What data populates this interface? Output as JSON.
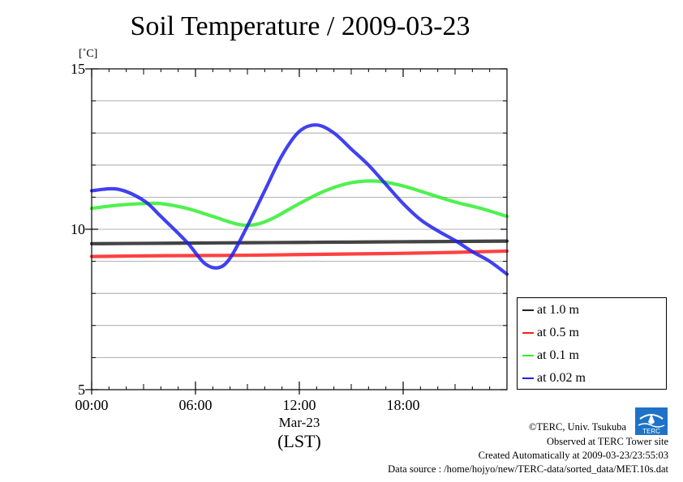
{
  "chart_data": {
    "type": "line",
    "title": "Soil Temperature / 2009-03-23",
    "ylabel": "[˚C]",
    "xlabel": "(LST)",
    "date_label": "Mar-23",
    "xlim": [
      0,
      24
    ],
    "ylim": [
      5,
      15
    ],
    "x_ticks": [
      {
        "value": 0,
        "label": "00:00"
      },
      {
        "value": 6,
        "label": "06:00"
      },
      {
        "value": 12,
        "label": "12:00"
      },
      {
        "value": 18,
        "label": "18:00"
      }
    ],
    "y_ticks": [
      {
        "value": 5,
        "label": "5"
      },
      {
        "value": 10,
        "label": "10"
      },
      {
        "value": 15,
        "label": "15"
      }
    ],
    "y_gridlines": [
      6,
      7,
      8,
      9,
      10,
      11,
      12,
      13,
      14
    ],
    "legend_position": "bottom-right-outside",
    "series": [
      {
        "name": "at 1.0 m",
        "color": "#222222",
        "x": [
          0,
          3,
          6,
          9,
          12,
          15,
          18,
          21,
          24
        ],
        "y": [
          9.55,
          9.56,
          9.57,
          9.58,
          9.59,
          9.6,
          9.61,
          9.62,
          9.63
        ]
      },
      {
        "name": "at 0.5 m",
        "color": "#ff2020",
        "x": [
          0,
          3,
          6,
          9,
          12,
          15,
          18,
          21,
          24
        ],
        "y": [
          9.15,
          9.17,
          9.18,
          9.19,
          9.21,
          9.23,
          9.25,
          9.28,
          9.32
        ]
      },
      {
        "name": "at 0.1 m",
        "color": "#30ee30",
        "x": [
          0,
          1.5,
          3,
          4,
          5.5,
          7,
          8.5,
          9.5,
          10.5,
          12,
          13.5,
          15,
          16.5,
          18,
          19.5,
          21,
          22.5,
          24
        ],
        "y": [
          10.65,
          10.75,
          10.8,
          10.8,
          10.65,
          10.4,
          10.15,
          10.15,
          10.35,
          10.8,
          11.2,
          11.45,
          11.5,
          11.35,
          11.1,
          10.85,
          10.65,
          10.4
        ]
      },
      {
        "name": "at 0.02 m",
        "color": "#2020ee",
        "x": [
          0,
          1.5,
          3,
          4,
          5.5,
          6.5,
          7.3,
          8,
          9,
          10,
          11,
          12,
          13,
          14,
          15,
          16,
          17,
          18,
          19,
          20,
          21,
          22,
          23,
          24
        ],
        "y": [
          11.2,
          11.25,
          10.9,
          10.4,
          9.6,
          8.95,
          8.8,
          9.1,
          10.1,
          11.2,
          12.3,
          13.05,
          13.25,
          13.0,
          12.5,
          12.0,
          11.4,
          10.8,
          10.3,
          9.95,
          9.65,
          9.3,
          9.0,
          8.6
        ]
      }
    ]
  },
  "footer": {
    "copyright": "©TERC, Univ. Tsukuba",
    "observed": "Observed at TERC Tower site",
    "created": "Created Automatically at 2009-03-23/23:55:03",
    "source": "Data source : /home/hojyo/new/TERC-data/sorted_data/MET.10s.dat",
    "logo_text": "TERC"
  }
}
